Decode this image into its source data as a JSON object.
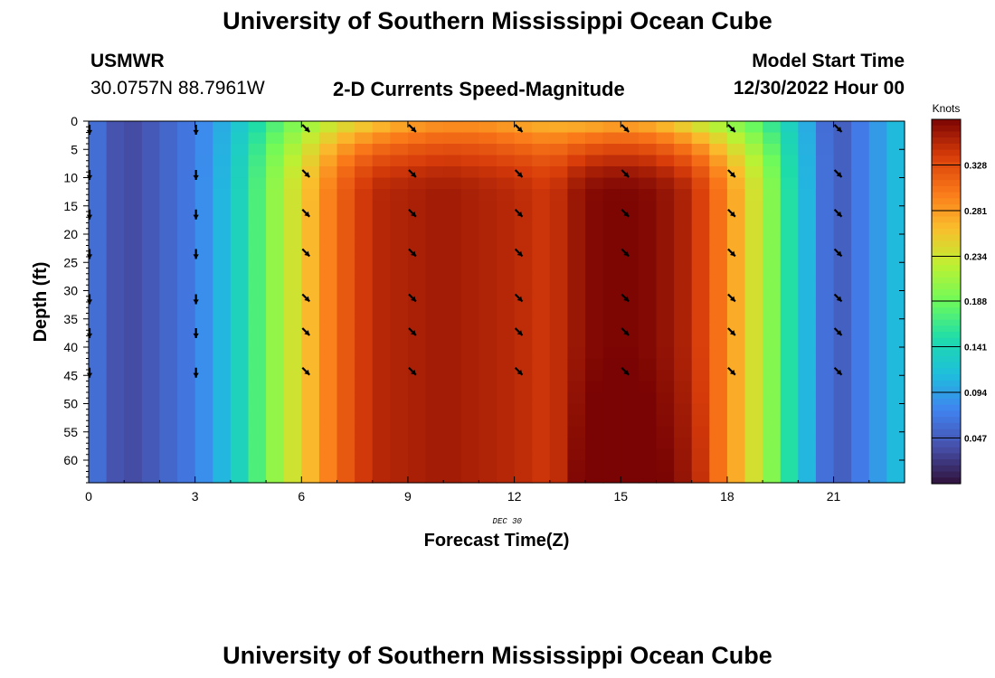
{
  "page": {
    "title": "University of Southern Mississippi Ocean Cube",
    "bottom_title": "University of Southern Mississippi Ocean Cube",
    "station": "USMWR",
    "coords": "30.0757N  88.7961W",
    "subtitle": "2-D Currents Speed-Magnitude",
    "model_start_label": "Model Start Time",
    "model_start_value": "12/30/2022 Hour 00",
    "date_label": "DEC 30"
  },
  "chart_data": {
    "type": "heatmap",
    "title": "2-D Currents Speed-Magnitude",
    "xlabel": "Forecast Time(Z)",
    "ylabel": "Depth (ft)",
    "x_ticks": [
      0,
      3,
      6,
      9,
      12,
      15,
      18,
      21
    ],
    "y_ticks": [
      0,
      5,
      10,
      15,
      20,
      25,
      30,
      35,
      40,
      45,
      50,
      55,
      60
    ],
    "xlim": [
      0,
      23
    ],
    "ylim": [
      0,
      64
    ],
    "colorbar": {
      "label": "Knots",
      "ticks": [
        0.047,
        0.094,
        0.141,
        0.188,
        0.234,
        0.281,
        0.328
      ],
      "range": [
        0.0,
        0.375
      ]
    },
    "speed_by_hour": [
      0.07,
      0.03,
      0.05,
      0.07,
      0.12,
      0.19,
      0.25,
      0.31,
      0.35,
      0.355,
      0.36,
      0.355,
      0.35,
      0.34,
      0.37,
      0.375,
      0.37,
      0.35,
      0.29,
      0.22,
      0.13,
      0.04,
      0.08,
      0.12
    ],
    "surface_speed_by_hour": [
      0.07,
      0.03,
      0.05,
      0.07,
      0.11,
      0.16,
      0.2,
      0.23,
      0.25,
      0.27,
      0.28,
      0.28,
      0.27,
      0.26,
      0.26,
      0.27,
      0.26,
      0.23,
      0.2,
      0.17,
      0.12,
      0.04,
      0.08,
      0.12
    ],
    "vectors": {
      "hours": [
        0,
        3,
        6,
        9,
        12,
        15,
        18,
        21
      ],
      "depths": [
        0,
        8,
        15,
        22,
        30,
        36,
        43
      ],
      "direction": [
        "S",
        "S",
        "SE",
        "SE",
        "SE",
        "SE",
        "SE",
        "SE"
      ]
    }
  }
}
